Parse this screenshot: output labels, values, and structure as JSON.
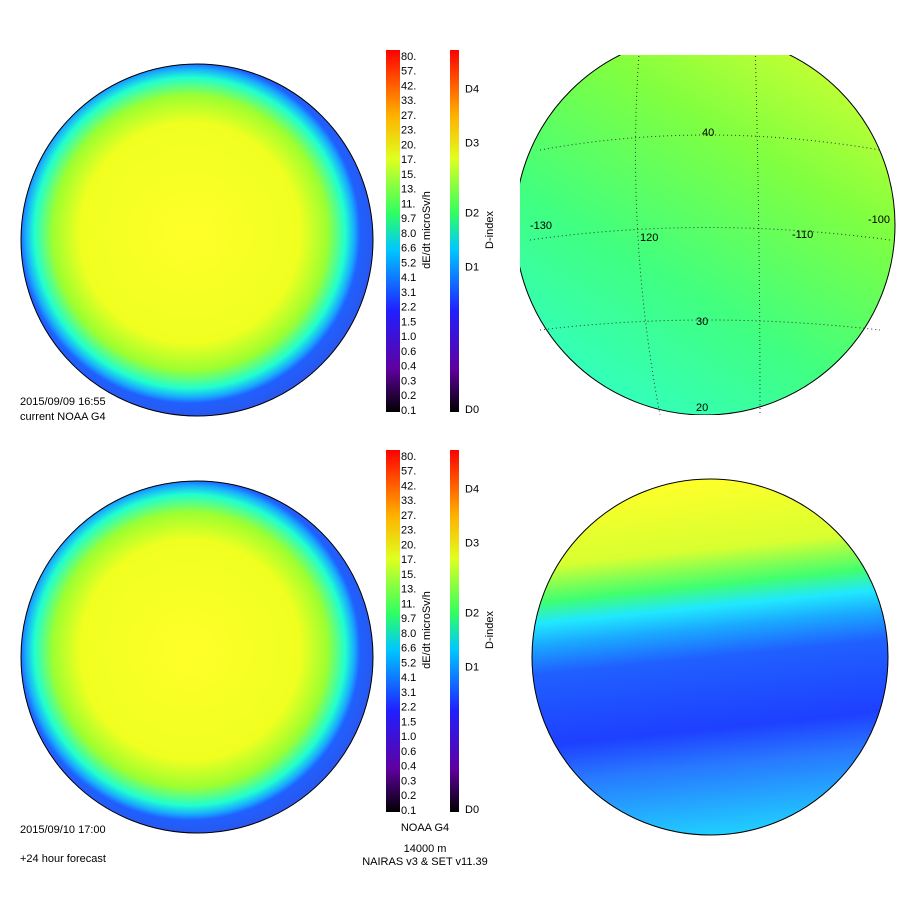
{
  "panels": [
    {
      "timestamp": "2015/09/09 16:55",
      "caption": "current NOAA G4",
      "dose_colorbar": {
        "title": "dE/dt microSv/h",
        "labels": [
          "80.",
          "57.",
          "42.",
          "33.",
          "27.",
          "23.",
          "20.",
          "17.",
          "15.",
          "13.",
          "11.",
          "9.7",
          "8.0",
          "6.6",
          "5.2",
          "4.1",
          "3.1",
          "2.2",
          "1.5",
          "1.0",
          "0.6",
          "0.4",
          "0.3",
          "0.2",
          "0.1"
        ]
      },
      "dindex_colorbar": {
        "title": "D-index",
        "labels": [
          "D4",
          "D3",
          "D2",
          "D1",
          "D0"
        ]
      },
      "map_labels": [
        "40",
        "-130",
        "120",
        "-110",
        "-100",
        "30",
        "20"
      ]
    },
    {
      "timestamp": "2015/09/10 17:00",
      "caption": "+24 hour forecast",
      "dose_colorbar": {
        "title": "dE/dt microSv/h",
        "labels": [
          "80.",
          "57.",
          "42.",
          "33.",
          "27.",
          "23.",
          "20.",
          "17.",
          "15.",
          "13.",
          "11.",
          "9.7",
          "8.0",
          "6.6",
          "5.2",
          "4.1",
          "3.1",
          "2.2",
          "1.5",
          "1.0",
          "0.6",
          "0.4",
          "0.3",
          "0.2",
          "0.1"
        ]
      },
      "dindex_colorbar": {
        "title": "D-index",
        "labels": [
          "D4",
          "D3",
          "D2",
          "D1",
          "D0"
        ]
      },
      "map_labels": []
    }
  ],
  "footer": {
    "title": "NOAA G4",
    "altitude": "14000 m",
    "model": "NAIRAS v3 & SET v11.39"
  }
}
